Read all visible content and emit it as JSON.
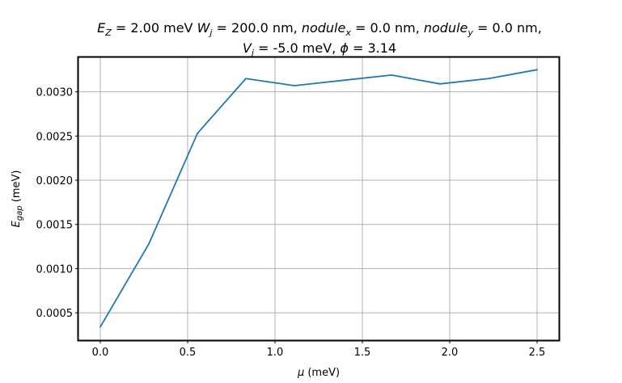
{
  "chart_data": {
    "type": "line",
    "title_line1": {
      "ez_sym": "E",
      "ez_sub": "Z",
      "ez_val": " = 2.00 meV ",
      "wj_sym": "W",
      "wj_sub": "j",
      "wj_val": " = 200.0 nm, ",
      "nx_sym": "nodule",
      "nx_sub": "x",
      "nx_val": " = 0.0 nm, ",
      "ny_sym": "nodule",
      "ny_sub": "y",
      "ny_val": " = 0.0 nm,"
    },
    "title_line2": {
      "vj_sym": "V",
      "vj_sub": "j",
      "vj_val": " = -5.0 meV, ",
      "phi_sym": "ϕ",
      "phi_val": " = 3.14"
    },
    "xlabel": {
      "sym": "μ",
      "unit": " (meV)"
    },
    "ylabel": {
      "sym": "E",
      "sub": "gap",
      "unit": " (meV)"
    },
    "xlim": [
      -0.125,
      2.625
    ],
    "ylim": [
      0.00019,
      0.00339
    ],
    "x_ticks": [
      0.0,
      0.5,
      1.0,
      1.5,
      2.0,
      2.5
    ],
    "x_tick_labels": [
      "0.0",
      "0.5",
      "1.0",
      "1.5",
      "2.0",
      "2.5"
    ],
    "y_ticks": [
      0.0005,
      0.001,
      0.0015,
      0.002,
      0.0025,
      0.003
    ],
    "y_tick_labels": [
      "0.0005",
      "0.0010",
      "0.0015",
      "0.0020",
      "0.0025",
      "0.0030"
    ],
    "grid": true,
    "series": [
      {
        "color": "#1f77b4",
        "x": [
          0.0,
          0.278,
          0.556,
          0.833,
          1.111,
          1.389,
          1.667,
          1.944,
          2.222,
          2.5
        ],
        "y": [
          0.00034,
          0.00128,
          0.00253,
          0.00315,
          0.00307,
          0.00313,
          0.00319,
          0.00309,
          0.00315,
          0.00325
        ]
      }
    ]
  }
}
